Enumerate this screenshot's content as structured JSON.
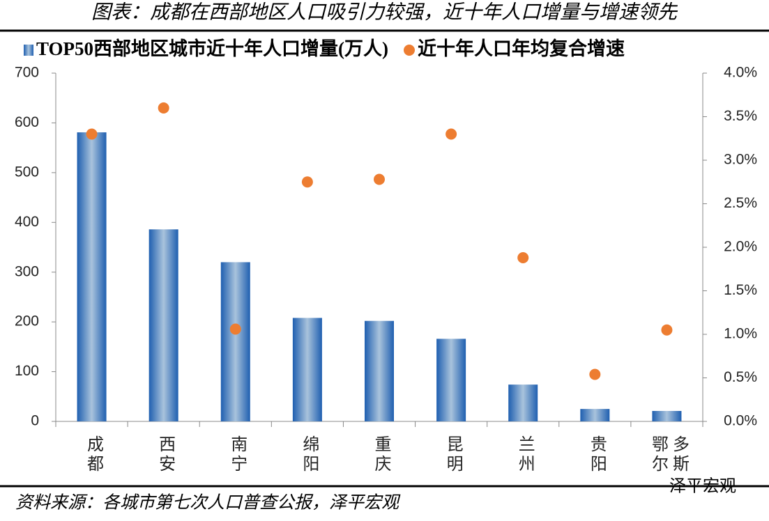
{
  "chart_data": {
    "type": "bar",
    "title": "图表：成都在西部地区人口吸引力较强，近十年人口增量与增速领先",
    "source": "资料来源：各城市第七次人口普查公报，泽平宏观",
    "watermark": "泽平宏观",
    "categories": [
      "成都",
      "西安",
      "南宁",
      "绵阳",
      "重庆",
      "昆明",
      "兰州",
      "贵阳",
      "鄂尔多斯"
    ],
    "series": [
      {
        "name": "TOP50西部地区城市近十年人口增量(万人)",
        "type": "bar",
        "color": "#2e6fbd",
        "values": [
          581,
          386,
          320,
          208,
          202,
          166,
          74,
          25,
          21
        ]
      },
      {
        "name": "近十年人口年均复合增速",
        "type": "scatter",
        "axis": "y2",
        "color": "#ed7d31",
        "values": [
          3.3,
          3.6,
          1.06,
          2.75,
          2.78,
          3.3,
          1.88,
          0.54,
          1.05
        ]
      }
    ],
    "ylim": [
      0,
      700
    ],
    "yticks": [
      0,
      100,
      200,
      300,
      400,
      500,
      600,
      700
    ],
    "y2lim": [
      0,
      4
    ],
    "y2ticks": [
      {
        "value": 0,
        "label": "0.0%"
      },
      {
        "value": 0.5,
        "label": "0.5%"
      },
      {
        "value": 1,
        "label": "1.0%"
      },
      {
        "value": 1.5,
        "label": "1.5%"
      },
      {
        "value": 2,
        "label": "2.0%"
      },
      {
        "value": 2.5,
        "label": "2.5%"
      },
      {
        "value": 3,
        "label": "3.0%"
      },
      {
        "value": 3.5,
        "label": "3.5%"
      },
      {
        "value": 4,
        "label": "4.0%"
      }
    ],
    "grid": false
  }
}
